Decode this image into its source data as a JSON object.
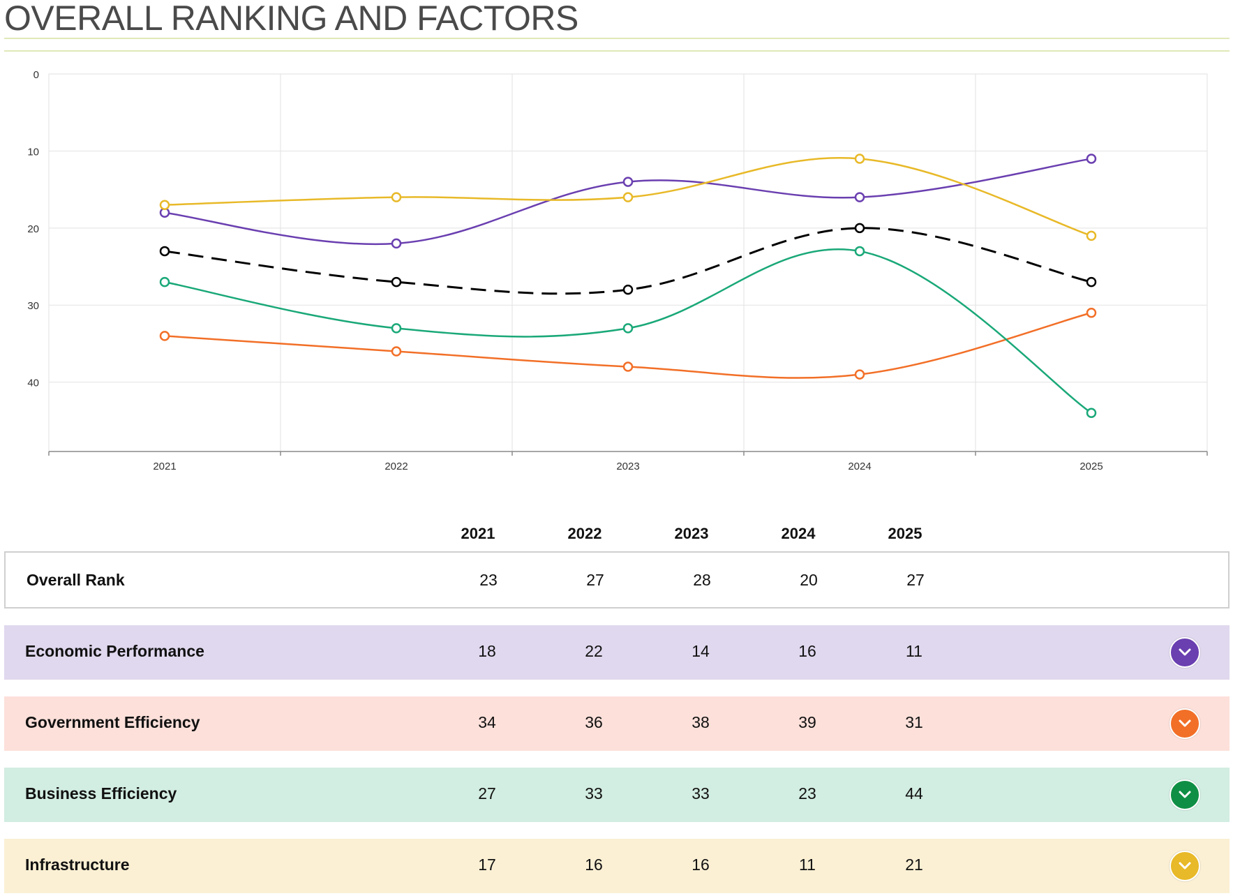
{
  "page": {
    "title": "OVERALL RANKING AND FACTORS"
  },
  "chart_data": {
    "type": "line",
    "categories": [
      "2021",
      "2022",
      "2023",
      "2024",
      "2025"
    ],
    "y_axis": {
      "min": 0,
      "max": 49,
      "reversed": true,
      "ticks": [
        0,
        10,
        20,
        30,
        40
      ]
    },
    "grid": true,
    "series": [
      {
        "name": "Overall Rank",
        "values": [
          23,
          27,
          28,
          20,
          27
        ],
        "color": "#000000",
        "dashed": true
      },
      {
        "name": "Economic Performance",
        "values": [
          18,
          22,
          14,
          16,
          11
        ],
        "color": "#6a3fb0"
      },
      {
        "name": "Government Efficiency",
        "values": [
          34,
          36,
          38,
          39,
          31
        ],
        "color": "#f26f27"
      },
      {
        "name": "Business Efficiency",
        "values": [
          27,
          33,
          33,
          23,
          44
        ],
        "color": "#1aa879"
      },
      {
        "name": "Infrastructure",
        "values": [
          17,
          16,
          16,
          11,
          21
        ],
        "color": "#e8b928"
      }
    ]
  },
  "table": {
    "years": [
      "2021",
      "2022",
      "2023",
      "2024",
      "2025"
    ],
    "overall": {
      "label": "Overall Rank",
      "values": [
        "23",
        "27",
        "28",
        "20",
        "27"
      ]
    },
    "factors": [
      {
        "label": "Economic Performance",
        "values": [
          "18",
          "22",
          "14",
          "16",
          "11"
        ],
        "bg": "#e0d8ee",
        "icon_color": "#6a3fb0",
        "icon": "chevron-down-icon"
      },
      {
        "label": "Government Efficiency",
        "values": [
          "34",
          "36",
          "38",
          "39",
          "31"
        ],
        "bg": "#fde0da",
        "icon_color": "#f26f27",
        "icon": "chevron-down-icon"
      },
      {
        "label": "Business Efficiency",
        "values": [
          "27",
          "33",
          "33",
          "23",
          "44"
        ],
        "bg": "#d2ede2",
        "icon_color": "#0f8f45",
        "icon": "chevron-down-icon"
      },
      {
        "label": "Infrastructure",
        "values": [
          "17",
          "16",
          "16",
          "11",
          "21"
        ],
        "bg": "#fbf0d4",
        "icon_color": "#e8b928",
        "icon": "chevron-down-icon"
      }
    ]
  }
}
